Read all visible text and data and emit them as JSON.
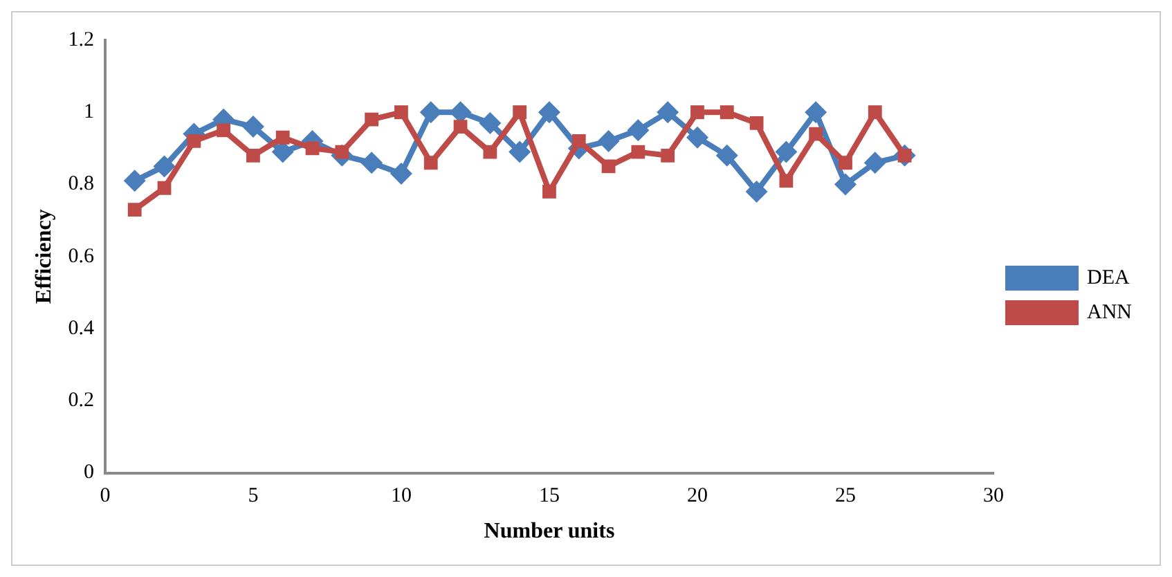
{
  "chart_data": {
    "type": "line",
    "xlabel": "Number units",
    "ylabel": "Efficiency",
    "x": [
      1,
      2,
      3,
      4,
      5,
      6,
      7,
      8,
      9,
      10,
      11,
      12,
      13,
      14,
      15,
      16,
      17,
      18,
      19,
      20,
      21,
      22,
      23,
      24,
      25,
      26,
      27
    ],
    "series": [
      {
        "name": "DEA",
        "color": "#4a7ebb",
        "marker": "diamond",
        "values": [
          0.81,
          0.85,
          0.94,
          0.98,
          0.96,
          0.89,
          0.92,
          0.88,
          0.86,
          0.83,
          1.0,
          1.0,
          0.97,
          0.89,
          1.0,
          0.9,
          0.92,
          0.95,
          1.0,
          0.93,
          0.88,
          0.78,
          0.89,
          1.0,
          0.8,
          0.86,
          0.88
        ]
      },
      {
        "name": "ANN",
        "color": "#be4b48",
        "marker": "square",
        "values": [
          0.73,
          0.79,
          0.92,
          0.95,
          0.88,
          0.93,
          0.9,
          0.89,
          0.98,
          1.0,
          0.86,
          0.96,
          0.89,
          1.0,
          0.78,
          0.92,
          0.85,
          0.89,
          0.88,
          1.0,
          1.0,
          0.97,
          0.81,
          0.94,
          0.86,
          1.0,
          0.88
        ]
      }
    ],
    "xlim": [
      0,
      30
    ],
    "xticks": [
      0,
      5,
      10,
      15,
      20,
      25,
      30
    ],
    "ylim": [
      0,
      1.2
    ],
    "yticks": [
      0,
      0.2,
      0.4,
      0.6,
      0.8,
      1,
      1.2
    ],
    "grid": false,
    "legend": "right"
  }
}
